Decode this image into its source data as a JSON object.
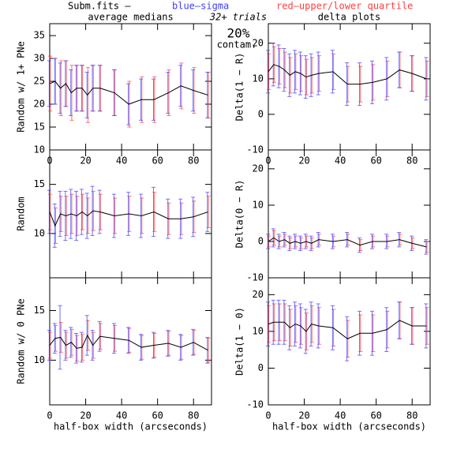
{
  "header": {
    "file": "Subm.fits  –",
    "sigma_key": "blue–sigma",
    "quartile_key": "red–upper/lower quartile",
    "trials": "32+ trials",
    "percent": "20%",
    "contam": "contam."
  },
  "chart_data": [
    {
      "type": "errorline",
      "title": "average medians",
      "ylabel": "Random w/ 1+ PNe",
      "x": [
        0,
        3,
        6,
        9,
        12,
        15,
        18,
        21,
        24,
        28,
        36,
        44,
        51,
        58,
        66,
        73,
        80,
        88
      ],
      "values": [
        24.5,
        25,
        23.5,
        24.5,
        22.5,
        23.5,
        23.5,
        22,
        23.5,
        23.5,
        22.5,
        20,
        21,
        21,
        22.5,
        24,
        23,
        22
      ],
      "sigma": [
        5,
        5,
        5.5,
        5,
        5,
        5,
        5,
        5,
        5,
        5,
        5,
        4.5,
        4.5,
        4.5,
        4.5,
        4.5,
        4.5,
        5
      ],
      "quartile": [
        6,
        5,
        6,
        5,
        6,
        5,
        5,
        6,
        5,
        5,
        5,
        5,
        5,
        5,
        5,
        5,
        5,
        5
      ],
      "line_color": "#000000",
      "sigma_color": "#4040ff",
      "quartile_color": "#ff4040",
      "xlim": [
        0,
        90
      ],
      "xticks": [
        0,
        20,
        40,
        60,
        80
      ],
      "ylim": [
        10,
        37.6
      ],
      "yticks": [
        10,
        15,
        20,
        25,
        30,
        35
      ],
      "xtick_labels": true
    },
    {
      "type": "errorline",
      "title": "delta plots",
      "ylabel": "Delta(1 − R)",
      "x": [
        0,
        3,
        6,
        9,
        12,
        15,
        18,
        21,
        24,
        28,
        36,
        44,
        51,
        58,
        66,
        73,
        80,
        88
      ],
      "values": [
        12,
        14,
        13.5,
        12.5,
        11,
        12,
        11.5,
        10.5,
        11,
        11.5,
        12,
        8.5,
        8.5,
        9,
        10,
        12.5,
        11.5,
        10
      ],
      "sigma": [
        6,
        6,
        6,
        6,
        6,
        6,
        6,
        6,
        6,
        6,
        6,
        6,
        6,
        6,
        6,
        5,
        5,
        6
      ],
      "quartile": [
        5,
        5,
        5,
        5,
        5,
        5,
        5,
        5,
        5,
        5,
        5,
        5,
        5,
        5,
        5,
        5,
        5,
        5
      ],
      "line_color": "#000000",
      "sigma_color": "#4040ff",
      "quartile_color": "#ff4040",
      "xlim": [
        0,
        90
      ],
      "xticks": [
        0,
        20,
        40,
        60,
        80
      ],
      "ylim": [
        -10,
        25.5
      ],
      "yticks": [
        -10,
        0,
        10,
        20
      ],
      "xtick_labels": true
    },
    {
      "type": "errorline",
      "ylabel": "Random",
      "x": [
        0,
        3,
        6,
        9,
        12,
        15,
        18,
        21,
        24,
        28,
        36,
        44,
        51,
        58,
        66,
        73,
        80,
        88
      ],
      "values": [
        12.2,
        10.8,
        12,
        11.8,
        12,
        11.8,
        12.2,
        11.8,
        12.3,
        12.2,
        11.8,
        12,
        11.8,
        12.2,
        11.5,
        11.5,
        11.7,
        12.2
      ],
      "sigma": [
        2.2,
        2.2,
        2.3,
        2.5,
        2.5,
        2.5,
        2.3,
        2.3,
        2.5,
        2.2,
        2.2,
        2.2,
        2.2,
        2.5,
        2,
        2,
        2,
        2
      ],
      "quartile": [
        1.8,
        1.8,
        1.8,
        2,
        2,
        2,
        1.8,
        1.8,
        2,
        1.8,
        1.8,
        1.8,
        1.8,
        2,
        1.6,
        1.6,
        1.6,
        1.6
      ],
      "line_color": "#000000",
      "sigma_color": "#4040ff",
      "quartile_color": "#ff4040",
      "xlim": [
        0,
        90
      ],
      "xticks": [
        0,
        20,
        40,
        60,
        80
      ],
      "ylim": [
        5.5,
        18.5
      ],
      "yticks": [
        10,
        15
      ],
      "xtick_labels": false
    },
    {
      "type": "errorline",
      "ylabel": "Delta(0 − R)",
      "x": [
        0,
        3,
        6,
        9,
        12,
        15,
        18,
        21,
        24,
        28,
        36,
        44,
        51,
        58,
        66,
        73,
        80,
        88
      ],
      "values": [
        0,
        1,
        0,
        0.5,
        -0.5,
        0,
        -0.5,
        0,
        -0.5,
        0.5,
        0,
        0.5,
        -1,
        0,
        0,
        0.5,
        -0.5,
        -1.5
      ],
      "sigma": [
        2,
        2.5,
        2,
        2,
        2,
        2,
        2,
        2,
        2,
        2,
        2,
        2,
        2,
        2,
        2,
        2,
        2,
        2
      ],
      "quartile": [
        1.5,
        2,
        1.5,
        1.5,
        1.5,
        1.5,
        1.5,
        1.5,
        1.5,
        1.5,
        1.5,
        1.5,
        1.5,
        1.5,
        1.5,
        1.5,
        1.5,
        1.5
      ],
      "line_color": "#000000",
      "sigma_color": "#4040ff",
      "quartile_color": "#ff4040",
      "xlim": [
        0,
        90
      ],
      "xticks": [
        0,
        20,
        40,
        60,
        80
      ],
      "ylim": [
        -10,
        25.2
      ],
      "yticks": [
        -10,
        0,
        10,
        20
      ],
      "xtick_labels": false
    },
    {
      "type": "errorline",
      "ylabel": "Random w/ 0 PNe",
      "xlabel": "half-box width (arcseconds)",
      "x": [
        0,
        3,
        6,
        9,
        12,
        15,
        18,
        21,
        24,
        28,
        36,
        44,
        51,
        58,
        66,
        73,
        80,
        88
      ],
      "values": [
        11.5,
        12.2,
        12.3,
        11.5,
        11.8,
        11.2,
        11.3,
        12.5,
        11.5,
        12.4,
        12.2,
        12,
        11.3,
        11.5,
        11.7,
        11.3,
        11.8,
        11
      ],
      "sigma": [
        1.5,
        1.5,
        3.2,
        1.5,
        1.5,
        1.5,
        1.5,
        2,
        1.5,
        1.5,
        1.5,
        1.3,
        1.3,
        1.3,
        1.3,
        1.3,
        1.3,
        1.3
      ],
      "quartile": [
        1.3,
        1.3,
        1.5,
        1.3,
        1.3,
        1.3,
        1.3,
        1.5,
        1.3,
        1.3,
        1.3,
        1.2,
        1.2,
        1.2,
        1.2,
        1.2,
        1.2,
        1.2
      ],
      "line_color": "#000000",
      "sigma_color": "#4040ff",
      "quartile_color": "#ff4040",
      "xlim": [
        0,
        90
      ],
      "xticks": [
        0,
        20,
        40,
        60,
        80
      ],
      "ylim": [
        5.5,
        18.3
      ],
      "yticks": [
        10,
        15
      ],
      "xtick_labels": true
    },
    {
      "type": "errorline",
      "ylabel": "Delta(1 − 0)",
      "xlabel": "half-box width (arcseconds)",
      "x": [
        0,
        3,
        6,
        9,
        12,
        15,
        18,
        21,
        24,
        28,
        36,
        44,
        51,
        58,
        66,
        73,
        80,
        88
      ],
      "values": [
        12,
        12.5,
        12.5,
        12.5,
        11,
        12,
        11.5,
        10,
        12,
        11.5,
        11,
        8,
        9.5,
        9.5,
        10.5,
        13,
        11.5,
        11.5
      ],
      "sigma": [
        6,
        6,
        6,
        6,
        6,
        6,
        6,
        6,
        6,
        6,
        6,
        6,
        6,
        6,
        6,
        5,
        5,
        6
      ],
      "quartile": [
        5,
        5,
        5,
        5,
        5,
        5,
        5,
        5,
        5,
        5,
        5,
        5,
        5,
        5,
        5,
        5,
        5,
        5
      ],
      "line_color": "#000000",
      "sigma_color": "#4040ff",
      "quartile_color": "#ff4040",
      "xlim": [
        0,
        90
      ],
      "xticks": [
        0,
        20,
        40,
        60,
        80
      ],
      "ylim": [
        -10,
        24.6
      ],
      "yticks": [
        -10,
        0,
        10,
        20
      ],
      "xtick_labels": true
    }
  ]
}
